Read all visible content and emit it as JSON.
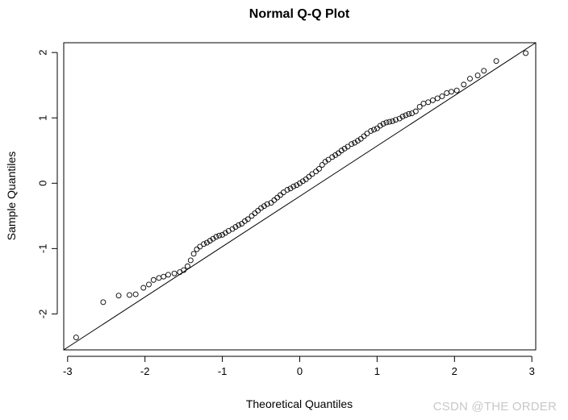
{
  "chart_data": {
    "type": "scatter",
    "subtype": "normal-qq",
    "title": "Normal Q-Q Plot",
    "xlabel": "Theoretical Quantiles",
    "ylabel": "Sample Quantiles",
    "xlim": [
      -3.05,
      3.05
    ],
    "ylim": [
      -2.55,
      2.15
    ],
    "x_ticks": [
      -3,
      -2,
      -1,
      0,
      1,
      2,
      3
    ],
    "x_tick_labels": [
      "-3",
      "-2",
      "-1",
      "0",
      "1",
      "2",
      "3"
    ],
    "y_ticks": [
      -2,
      -1,
      0,
      1,
      2
    ],
    "y_tick_labels": [
      "-2",
      "-1",
      "0",
      "1",
      "2"
    ],
    "reference_line": {
      "x": [
        -3.05,
        3.05
      ],
      "y": [
        -2.55,
        2.15
      ]
    },
    "points": {
      "x": [
        -2.89,
        -2.54,
        -2.34,
        -2.2,
        -2.12,
        -2.02,
        -1.95,
        -1.89,
        -1.82,
        -1.76,
        -1.7,
        -1.62,
        -1.55,
        -1.5,
        -1.45,
        -1.41,
        -1.37,
        -1.33,
        -1.29,
        -1.24,
        -1.2,
        -1.16,
        -1.12,
        -1.08,
        -1.04,
        -1.0,
        -0.96,
        -0.92,
        -0.87,
        -0.83,
        -0.79,
        -0.75,
        -0.71,
        -0.67,
        -0.62,
        -0.58,
        -0.54,
        -0.5,
        -0.46,
        -0.42,
        -0.37,
        -0.33,
        -0.29,
        -0.25,
        -0.21,
        -0.16,
        -0.12,
        -0.08,
        -0.04,
        0.0,
        0.04,
        0.08,
        0.12,
        0.16,
        0.21,
        0.25,
        0.29,
        0.33,
        0.37,
        0.42,
        0.46,
        0.5,
        0.54,
        0.58,
        0.62,
        0.67,
        0.71,
        0.75,
        0.79,
        0.83,
        0.87,
        0.92,
        0.96,
        1.0,
        1.04,
        1.08,
        1.12,
        1.16,
        1.2,
        1.24,
        1.29,
        1.33,
        1.37,
        1.41,
        1.45,
        1.5,
        1.55,
        1.6,
        1.66,
        1.72,
        1.78,
        1.84,
        1.9,
        1.96,
        2.03,
        2.12,
        2.2,
        2.3,
        2.38,
        2.54,
        2.92
      ],
      "y": [
        -2.36,
        -1.82,
        -1.72,
        -1.71,
        -1.7,
        -1.6,
        -1.55,
        -1.48,
        -1.45,
        -1.43,
        -1.4,
        -1.38,
        -1.36,
        -1.33,
        -1.27,
        -1.18,
        -1.08,
        -1.01,
        -0.97,
        -0.93,
        -0.91,
        -0.88,
        -0.85,
        -0.82,
        -0.8,
        -0.79,
        -0.76,
        -0.73,
        -0.7,
        -0.67,
        -0.64,
        -0.62,
        -0.58,
        -0.55,
        -0.5,
        -0.46,
        -0.42,
        -0.38,
        -0.35,
        -0.32,
        -0.3,
        -0.26,
        -0.22,
        -0.18,
        -0.14,
        -0.1,
        -0.08,
        -0.05,
        -0.03,
        0.0,
        0.03,
        0.06,
        0.1,
        0.14,
        0.18,
        0.22,
        0.28,
        0.33,
        0.36,
        0.4,
        0.43,
        0.46,
        0.5,
        0.53,
        0.56,
        0.6,
        0.62,
        0.65,
        0.68,
        0.72,
        0.76,
        0.8,
        0.82,
        0.84,
        0.88,
        0.91,
        0.93,
        0.94,
        0.95,
        0.97,
        0.99,
        1.02,
        1.04,
        1.06,
        1.07,
        1.1,
        1.17,
        1.22,
        1.24,
        1.27,
        1.3,
        1.33,
        1.38,
        1.4,
        1.42,
        1.51,
        1.6,
        1.65,
        1.72,
        1.87,
        1.99
      ]
    }
  },
  "watermark": "CSDN @THE ORDER"
}
